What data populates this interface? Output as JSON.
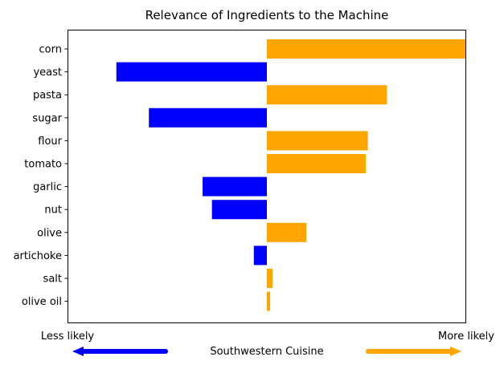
{
  "chart_data": {
    "type": "bar",
    "orientation": "horizontal",
    "title": "Relevance of Ingredients to the Machine",
    "categories": [
      "corn",
      "yeast",
      "pasta",
      "sugar",
      "flour",
      "tomato",
      "garlic",
      "nut",
      "olive",
      "artichoke",
      "salt",
      "olive oil"
    ],
    "values": [
      0.49,
      -0.37,
      0.295,
      -0.29,
      0.248,
      0.243,
      -0.158,
      -0.135,
      0.097,
      -0.032,
      0.014,
      0.008
    ],
    "xlim": [
      -0.49,
      0.49
    ],
    "grid": false,
    "legend": "none",
    "colors": {
      "positive": "#ffa500",
      "negative": "#0000ff"
    },
    "axis_end_labels": {
      "left": "Less likely",
      "right": "More likely"
    },
    "xlabel": "Southwestern Cuisine",
    "arrows": [
      {
        "direction": "left",
        "color": "#0000ff"
      },
      {
        "direction": "right",
        "color": "#ffa500"
      }
    ]
  }
}
